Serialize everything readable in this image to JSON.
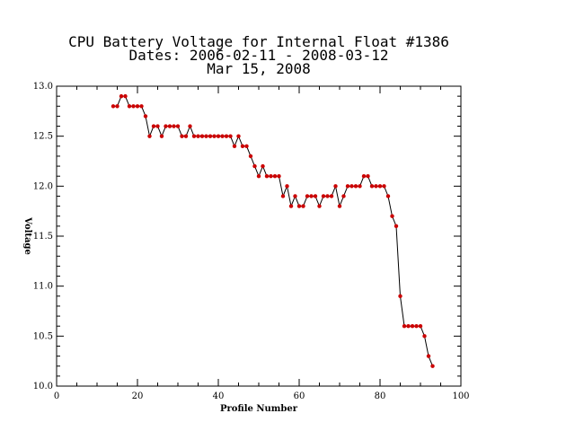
{
  "chart_data": {
    "type": "line",
    "title_lines": [
      "CPU Battery Voltage for Internal Float #1386",
      "Dates:  2006-02-11 -  2008-03-12",
      "Mar 15, 2008"
    ],
    "xlabel": "Profile Number",
    "ylabel": "Voltage",
    "xlim": [
      0,
      100
    ],
    "ylim": [
      10.0,
      13.0
    ],
    "xticks": [
      0,
      20,
      40,
      60,
      80,
      100
    ],
    "yticks": [
      10.0,
      10.5,
      11.0,
      11.5,
      12.0,
      12.5,
      13.0
    ],
    "xtick_labels": [
      "0",
      "20",
      "40",
      "60",
      "80",
      "100"
    ],
    "ytick_labels": [
      "10.0",
      "10.5",
      "11.0",
      "11.5",
      "12.0",
      "12.5",
      "13.0"
    ],
    "grid": false,
    "line_color": "#000000",
    "marker_color": "#cc0000",
    "x": [
      14,
      15,
      16,
      17,
      18,
      19,
      20,
      21,
      22,
      23,
      24,
      25,
      26,
      27,
      28,
      29,
      30,
      31,
      32,
      33,
      34,
      35,
      36,
      37,
      38,
      39,
      40,
      41,
      42,
      43,
      44,
      45,
      46,
      47,
      48,
      49,
      50,
      51,
      52,
      53,
      54,
      55,
      56,
      57,
      58,
      59,
      60,
      61,
      62,
      63,
      64,
      65,
      66,
      67,
      68,
      69,
      70,
      71,
      72,
      73,
      74,
      75,
      76,
      77,
      78,
      79,
      80,
      81,
      82,
      83,
      84,
      85,
      86,
      87,
      88,
      89,
      90,
      91,
      92,
      93
    ],
    "y": [
      12.8,
      12.8,
      12.9,
      12.9,
      12.8,
      12.8,
      12.8,
      12.8,
      12.7,
      12.5,
      12.6,
      12.6,
      12.5,
      12.6,
      12.6,
      12.6,
      12.6,
      12.5,
      12.5,
      12.6,
      12.5,
      12.5,
      12.5,
      12.5,
      12.5,
      12.5,
      12.5,
      12.5,
      12.5,
      12.5,
      12.4,
      12.5,
      12.4,
      12.4,
      12.3,
      12.2,
      12.1,
      12.2,
      12.1,
      12.1,
      12.1,
      12.1,
      11.9,
      12.0,
      11.8,
      11.9,
      11.8,
      11.8,
      11.9,
      11.9,
      11.9,
      11.8,
      11.9,
      11.9,
      11.9,
      12.0,
      11.8,
      11.9,
      12.0,
      12.0,
      12.0,
      12.0,
      12.1,
      12.1,
      12.0,
      12.0,
      12.0,
      12.0,
      11.9,
      11.7,
      11.6,
      10.9,
      10.6,
      10.6,
      10.6,
      10.6,
      10.6,
      10.5,
      10.3,
      10.2
    ]
  }
}
